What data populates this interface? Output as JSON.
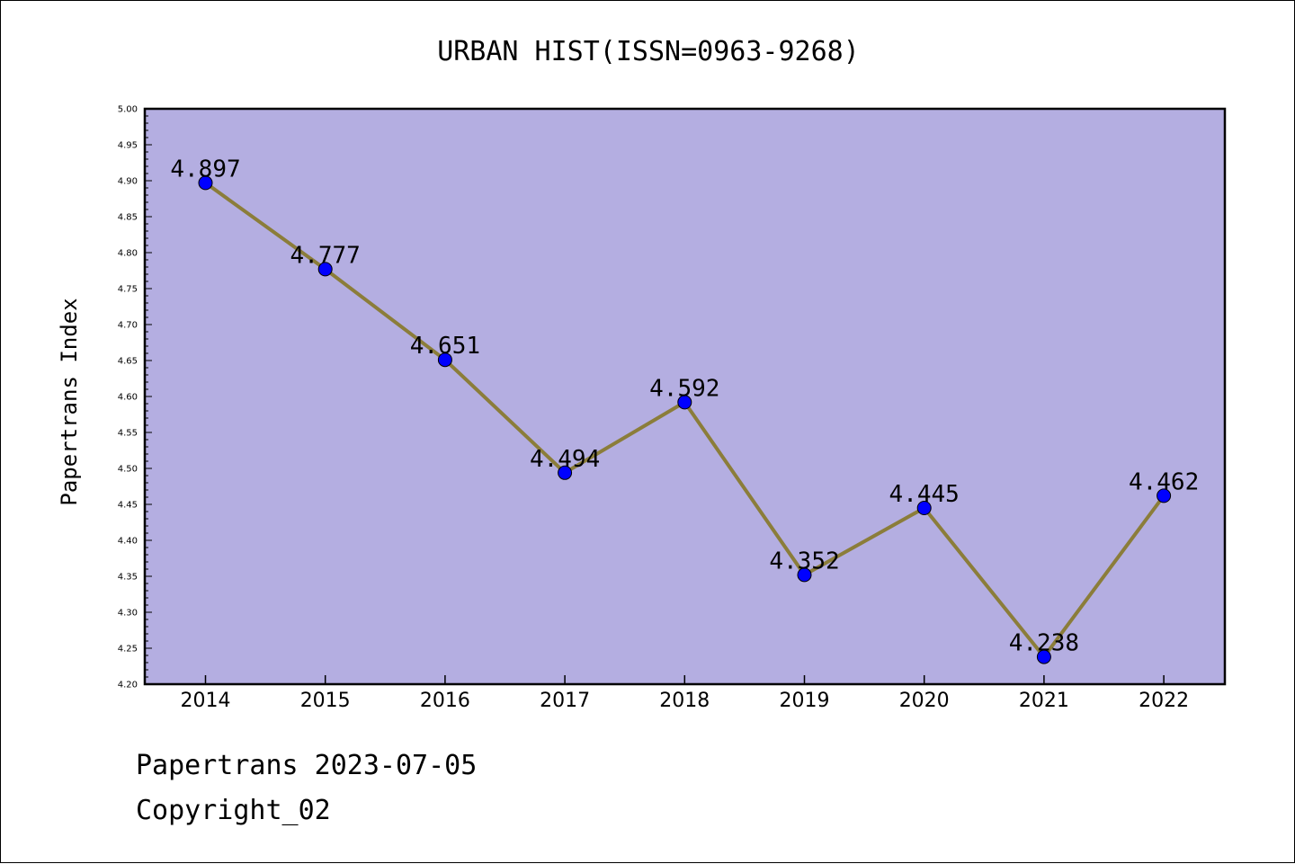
{
  "chart_data": {
    "type": "line",
    "title": "URBAN HIST(ISSN=0963-9268)",
    "ylabel": "Papertrans Index",
    "xlabel": "",
    "categories": [
      "2014",
      "2015",
      "2016",
      "2017",
      "2018",
      "2019",
      "2020",
      "2021",
      "2022"
    ],
    "series": [
      {
        "values": [
          4.897,
          4.777,
          4.651,
          4.494,
          4.592,
          4.352,
          4.445,
          4.238,
          4.462
        ],
        "data_labels": [
          "4.897",
          "4.777",
          "4.651",
          "4.494",
          "4.592",
          "4.352",
          "4.445",
          "4.238",
          "4.462"
        ]
      }
    ],
    "ylim": [
      4.2,
      5.0
    ],
    "yticks": [
      "4.20",
      "4.25",
      "4.30",
      "4.35",
      "4.40",
      "4.45",
      "4.50",
      "4.55",
      "4.60",
      "4.65",
      "4.70",
      "4.75",
      "4.80",
      "4.85",
      "4.90",
      "4.95",
      "5.00"
    ],
    "ytick_step": 0.05,
    "grid": false,
    "legend": "none",
    "colors": {
      "plot_background": "#b4aee1",
      "line": "#8b7d3a",
      "marker": "#0000ff"
    }
  },
  "footer": {
    "line1": "Papertrans 2023-07-05",
    "line2": "Copyright_02"
  }
}
